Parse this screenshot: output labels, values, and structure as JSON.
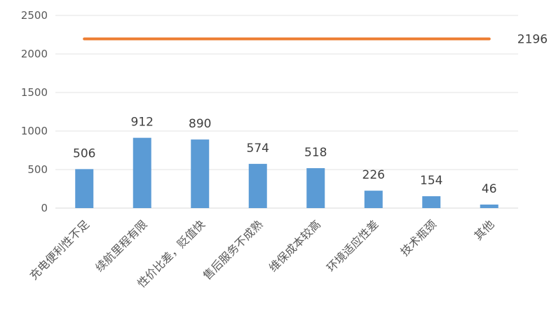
{
  "chart_data": {
    "type": "bar",
    "categories": [
      "充电便利性不足",
      "续航里程有限",
      "性价比差，贬值快",
      "售后服务不成熟",
      "维保成本较高",
      "环境适应性差",
      "技术瓶颈",
      "其他"
    ],
    "series": [
      {
        "type": "bar",
        "values": [
          506,
          912,
          890,
          574,
          518,
          226,
          154,
          46
        ],
        "color": "#5b9bd5"
      },
      {
        "type": "line",
        "values": [
          2196,
          2196,
          2196,
          2196,
          2196,
          2196,
          2196,
          2196
        ],
        "end_label": "2196",
        "color": "#ed7d31"
      }
    ],
    "ylim": [
      0,
      2500
    ],
    "yticks": [
      0,
      500,
      1000,
      1500,
      2000,
      2500
    ],
    "grid": true,
    "legend": "none",
    "data_labels": true
  }
}
